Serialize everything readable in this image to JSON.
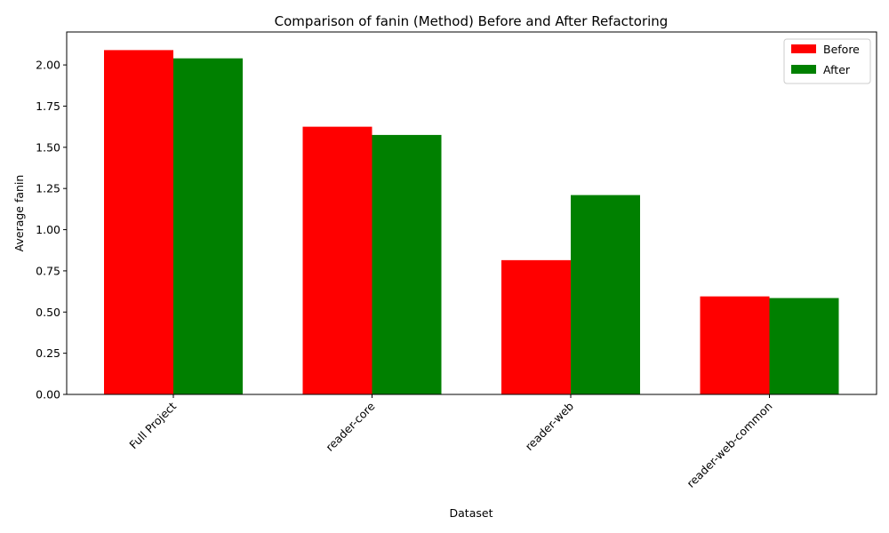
{
  "chart_data": {
    "type": "bar",
    "title": "Comparison of fanin (Method) Before and After Refactoring",
    "xlabel": "Dataset",
    "ylabel": "Average fanin",
    "categories": [
      "Full Project",
      "reader-core",
      "reader-web",
      "reader-web-common"
    ],
    "series": [
      {
        "name": "Before",
        "color": "#ff0000",
        "values": [
          2.09,
          1.625,
          0.815,
          0.595
        ]
      },
      {
        "name": "After",
        "color": "#008000",
        "values": [
          2.04,
          1.575,
          1.21,
          0.585
        ]
      }
    ],
    "ylim": [
      0,
      2.2
    ],
    "yticks": [
      0.0,
      0.25,
      0.5,
      0.75,
      1.0,
      1.25,
      1.5,
      1.75,
      2.0
    ],
    "ytick_labels": [
      "0.00",
      "0.25",
      "0.50",
      "0.75",
      "1.00",
      "1.25",
      "1.50",
      "1.75",
      "2.00"
    ],
    "grid": false,
    "legend": "top-right"
  }
}
